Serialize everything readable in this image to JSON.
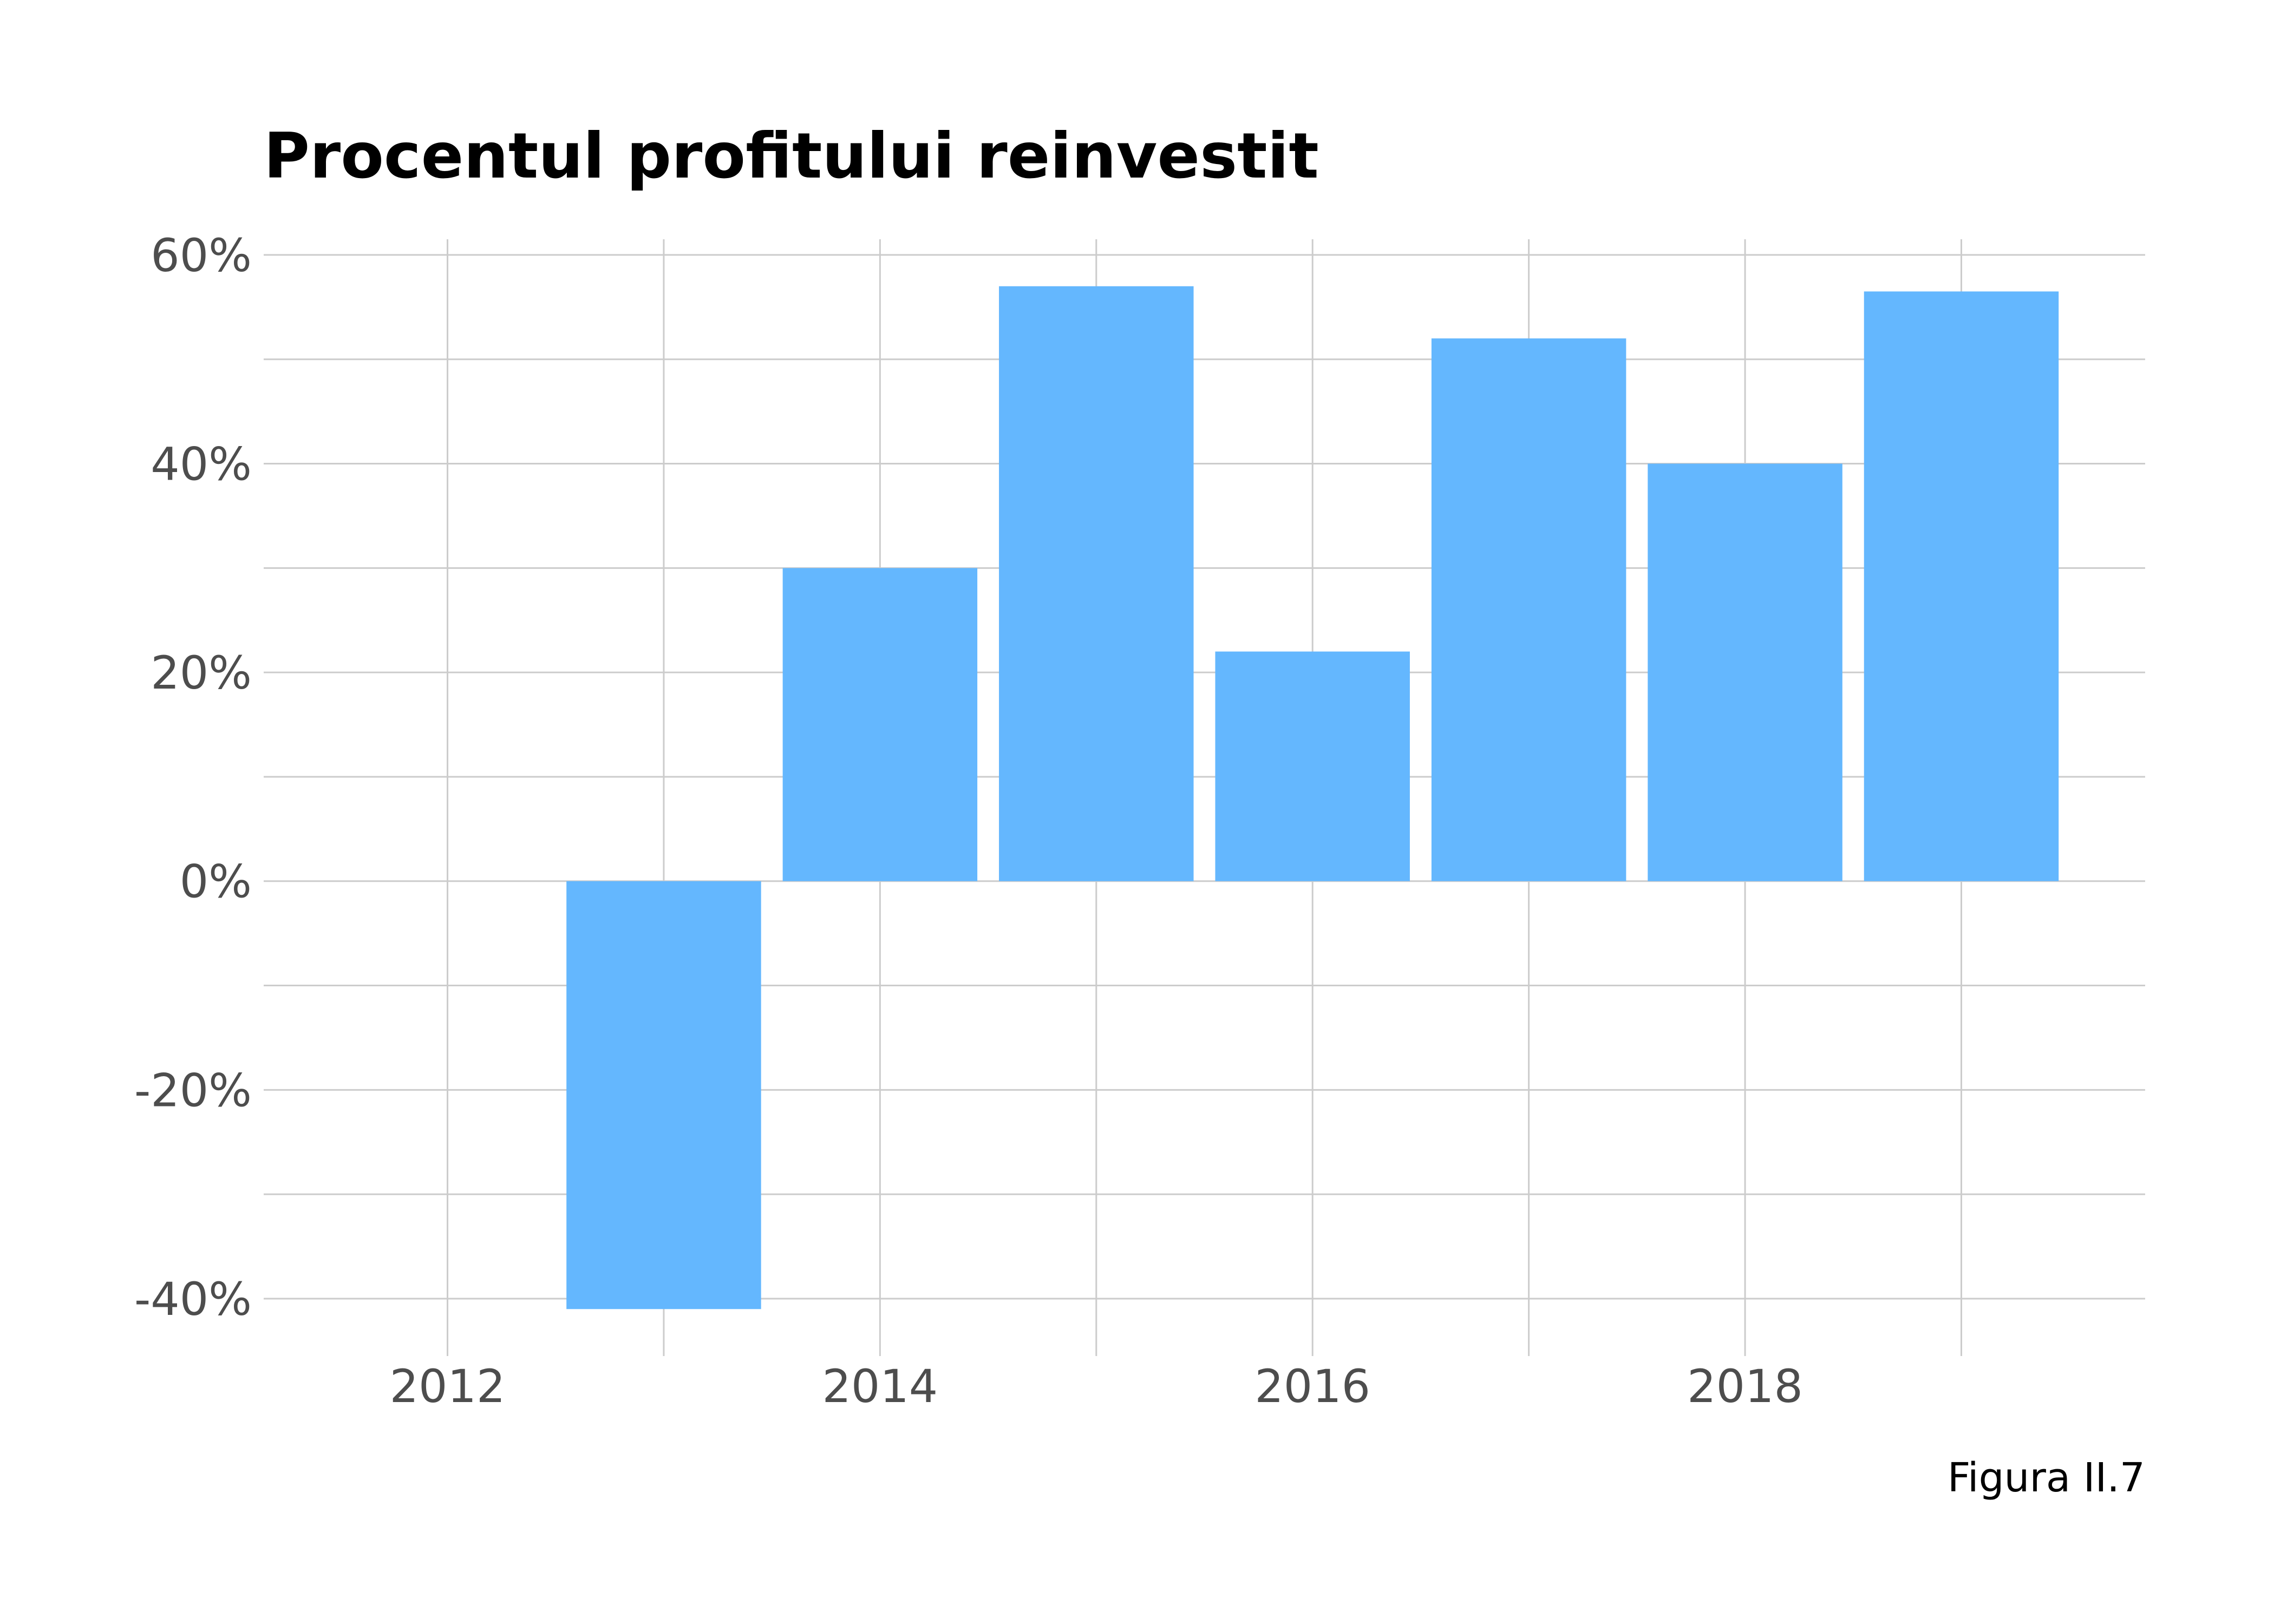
{
  "chart_data": {
    "type": "bar",
    "title": "Procentul profitului reinvestit",
    "caption": "Figura II.7",
    "xlabel": "",
    "ylabel": "",
    "x": [
      2013,
      2014,
      2015,
      2016,
      2017,
      2018,
      2019
    ],
    "values": [
      -41,
      30,
      57,
      22,
      52,
      40,
      56.5
    ],
    "unit": "%",
    "xlim": [
      2011.15,
      2019.85
    ],
    "ylim": [
      -45.5,
      61.5
    ],
    "x_ticks": [
      2012,
      2014,
      2016,
      2018
    ],
    "x_tick_labels": [
      "2012",
      "2014",
      "2016",
      "2018"
    ],
    "x_minor_ticks": [
      2013,
      2015,
      2017,
      2019
    ],
    "y_ticks": [
      -40,
      -20,
      0,
      20,
      40,
      60
    ],
    "y_tick_labels": [
      "-40%",
      "-20%",
      "0%",
      "20%",
      "40%",
      "60%"
    ],
    "y_minor_ticks": [
      -30,
      -10,
      10,
      30,
      50
    ],
    "grid": true,
    "legend": "none",
    "colors": {
      "bar": "#64b7fe",
      "grid": "#cccccc",
      "tick_text": "#4d4d4d",
      "title": "#000000",
      "background": "#ffffff"
    }
  }
}
